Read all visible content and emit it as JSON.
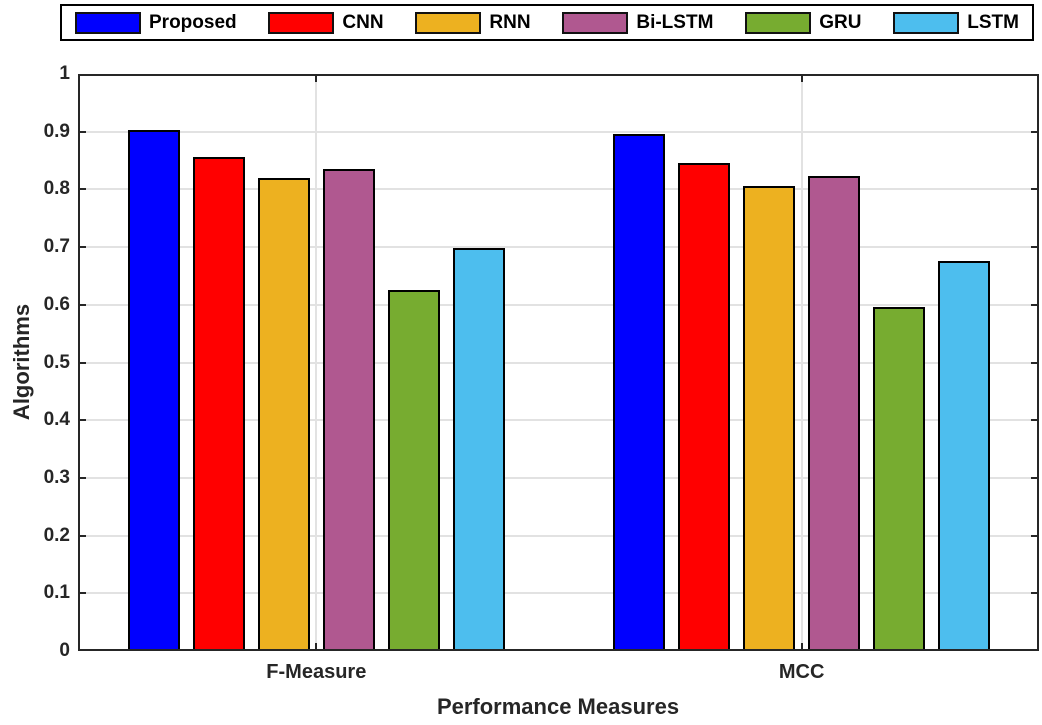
{
  "legend": {
    "entries": [
      {
        "label": "Proposed",
        "color": "#0000FF"
      },
      {
        "label": "CNN",
        "color": "#FF0000"
      },
      {
        "label": "RNN",
        "color": "#EDB120"
      },
      {
        "label": "Bi-LSTM",
        "color": "#B05890"
      },
      {
        "label": "GRU",
        "color": "#77AC30"
      },
      {
        "label": "LSTM",
        "color": "#4DBEEE"
      }
    ]
  },
  "chart_data": {
    "type": "bar",
    "title": "",
    "xlabel": "Performance Measures",
    "ylabel": "Algorithms",
    "categories": [
      "F-Measure",
      "MCC"
    ],
    "series": [
      {
        "name": "Proposed",
        "color": "#0000FF",
        "values": [
          0.903,
          0.896
        ]
      },
      {
        "name": "CNN",
        "color": "#FF0000",
        "values": [
          0.856,
          0.845
        ]
      },
      {
        "name": "RNN",
        "color": "#EDB120",
        "values": [
          0.82,
          0.806
        ]
      },
      {
        "name": "Bi-LSTM",
        "color": "#B05890",
        "values": [
          0.836,
          0.823
        ]
      },
      {
        "name": "GRU",
        "color": "#77AC30",
        "values": [
          0.625,
          0.596
        ]
      },
      {
        "name": "LSTM",
        "color": "#4DBEEE",
        "values": [
          0.698,
          0.676
        ]
      }
    ],
    "ylim": [
      0,
      1
    ],
    "ytick_step": 0.1,
    "ytick_labels": [
      "0",
      "0.1",
      "0.2",
      "0.3",
      "0.4",
      "0.5",
      "0.6",
      "0.7",
      "0.8",
      "0.9",
      "1"
    ],
    "grid": true,
    "legend_position": "top",
    "bar_edge_color": "#000000",
    "axis_color": "#262626",
    "grid_color": "#e2e2e2"
  }
}
